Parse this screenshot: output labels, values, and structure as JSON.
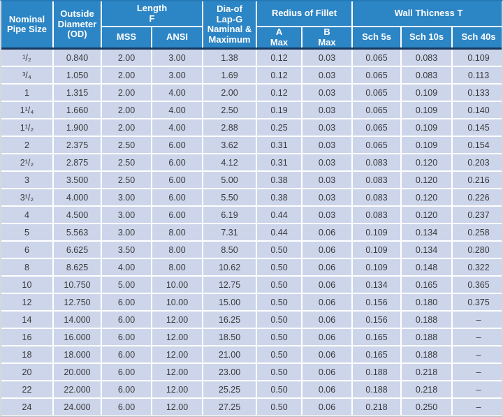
{
  "table": {
    "headers": {
      "nominal": "Nominal\nPipe Size",
      "od": "Outside\nDiameter\n(OD)",
      "length": "Length\nF",
      "mss": "MSS",
      "ansi": "ANSI",
      "lap_g": "Dia-of\nLap-G\nNaminal &\nMaximum",
      "fillet": "Redius of Fillet",
      "a_max": "A\nMax",
      "b_max": "B\nMax",
      "wall": "Wall Thicness T",
      "sch5": "Sch 5s",
      "sch10": "Sch 10s",
      "sch40": "Sch 40s"
    },
    "column_keys": [
      "nominal-pipe-size",
      "outside-diameter",
      "length-mss",
      "length-ansi",
      "lap-g-diameter",
      "fillet-a-max",
      "fillet-b-max",
      "wall-sch-5s",
      "wall-sch-10s",
      "wall-sch-40s"
    ],
    "rows": [
      [
        "¹/₂",
        "0.840",
        "2.00",
        "3.00",
        "1.38",
        "0.12",
        "0.03",
        "0.065",
        "0.083",
        "0.109"
      ],
      [
        "³/₄",
        "1.050",
        "2.00",
        "3.00",
        "1.69",
        "0.12",
        "0.03",
        "0.065",
        "0.083",
        "0.113"
      ],
      [
        "1",
        "1.315",
        "2.00",
        "4.00",
        "2.00",
        "0.12",
        "0.03",
        "0.065",
        "0.109",
        "0.133"
      ],
      [
        "1¹/₄",
        "1.660",
        "2.00",
        "4.00",
        "2.50",
        "0.19",
        "0.03",
        "0.065",
        "0.109",
        "0.140"
      ],
      [
        "1¹/₂",
        "1.900",
        "2.00",
        "4.00",
        "2.88",
        "0.25",
        "0.03",
        "0.065",
        "0.109",
        "0.145"
      ],
      [
        "2",
        "2.375",
        "2.50",
        "6.00",
        "3.62",
        "0.31",
        "0.03",
        "0.065",
        "0.109",
        "0.154"
      ],
      [
        "2¹/₂",
        "2.875",
        "2.50",
        "6.00",
        "4.12",
        "0.31",
        "0.03",
        "0.083",
        "0.120",
        "0.203"
      ],
      [
        "3",
        "3.500",
        "2.50",
        "6.00",
        "5.00",
        "0.38",
        "0.03",
        "0.083",
        "0.120",
        "0.216"
      ],
      [
        "3¹/₂",
        "4.000",
        "3.00",
        "6.00",
        "5.50",
        "0.38",
        "0.03",
        "0.083",
        "0.120",
        "0.226"
      ],
      [
        "4",
        "4.500",
        "3.00",
        "6.00",
        "6.19",
        "0.44",
        "0.03",
        "0.083",
        "0.120",
        "0.237"
      ],
      [
        "5",
        "5.563",
        "3.00",
        "8.00",
        "7.31",
        "0.44",
        "0.06",
        "0.109",
        "0.134",
        "0.258"
      ],
      [
        "6",
        "6.625",
        "3.50",
        "8.00",
        "8.50",
        "0.50",
        "0.06",
        "0.109",
        "0.134",
        "0.280"
      ],
      [
        "8",
        "8.625",
        "4.00",
        "8.00",
        "10.62",
        "0.50",
        "0.06",
        "0.109",
        "0.148",
        "0.322"
      ],
      [
        "10",
        "10.750",
        "5.00",
        "10.00",
        "12.75",
        "0.50",
        "0.06",
        "0.134",
        "0.165",
        "0.365"
      ],
      [
        "12",
        "12.750",
        "6.00",
        "10.00",
        "15.00",
        "0.50",
        "0.06",
        "0.156",
        "0.180",
        "0.375"
      ],
      [
        "14",
        "14.000",
        "6.00",
        "12.00",
        "16.25",
        "0.50",
        "0.06",
        "0.156",
        "0.188",
        "–"
      ],
      [
        "16",
        "16.000",
        "6.00",
        "12.00",
        "18.50",
        "0.50",
        "0.06",
        "0.165",
        "0.188",
        "–"
      ],
      [
        "18",
        "18.000",
        "6.00",
        "12.00",
        "21.00",
        "0.50",
        "0.06",
        "0.165",
        "0.188",
        "–"
      ],
      [
        "20",
        "20.000",
        "6.00",
        "12.00",
        "23.00",
        "0.50",
        "0.06",
        "0.188",
        "0.218",
        "–"
      ],
      [
        "22",
        "22.000",
        "6.00",
        "12.00",
        "25.25",
        "0.50",
        "0.06",
        "0.188",
        "0.218",
        "–"
      ],
      [
        "24",
        "24.000",
        "6.00",
        "12.00",
        "27.25",
        "0.50",
        "0.06",
        "0.218",
        "0.250",
        "–"
      ]
    ]
  },
  "colors": {
    "header_bg": "#2c85c5",
    "header_text": "#ffffff",
    "row_bg": "#ccd5ea",
    "grid_line": "#ffffff",
    "header_divider": "#17375e",
    "cell_text": "#3a3a3a"
  }
}
